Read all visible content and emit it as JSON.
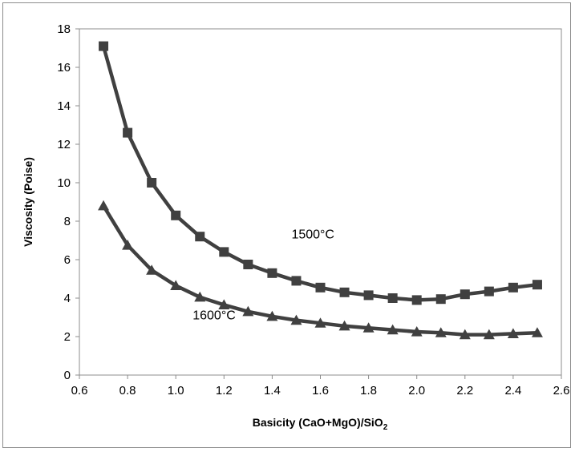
{
  "chart_data": {
    "type": "line",
    "xlabel": "Basicity (CaO+MgO)/SiO",
    "xlabel_subscript": "2",
    "ylabel": "Viscosity (Poise)",
    "xlim": [
      0.6,
      2.6
    ],
    "ylim": [
      0,
      18
    ],
    "xticks": [
      0.6,
      0.8,
      1.0,
      1.2,
      1.4,
      1.6,
      1.8,
      2.0,
      2.2,
      2.4,
      2.6
    ],
    "xtick_labels": [
      "0.6",
      "0.8",
      "1.0",
      "1.2",
      "1.4",
      "1.6",
      "1.8",
      "2.0",
      "2.2",
      "2.4",
      "2.6"
    ],
    "yticks": [
      0,
      2,
      4,
      6,
      8,
      10,
      12,
      14,
      16,
      18
    ],
    "ytick_labels": [
      "0",
      "2",
      "4",
      "6",
      "8",
      "10",
      "12",
      "14",
      "16",
      "18"
    ],
    "grid": false,
    "legend": "none",
    "line_color": "#404040",
    "x": [
      0.7,
      0.8,
      0.9,
      1.0,
      1.1,
      1.2,
      1.3,
      1.4,
      1.5,
      1.6,
      1.7,
      1.8,
      1.9,
      2.0,
      2.1,
      2.2,
      2.3,
      2.4,
      2.5
    ],
    "series": [
      {
        "name": "1500°C",
        "marker": "square",
        "values": [
          17.1,
          12.6,
          10.0,
          8.3,
          7.2,
          6.4,
          5.75,
          5.3,
          4.9,
          4.55,
          4.3,
          4.15,
          4.0,
          3.9,
          3.95,
          4.2,
          4.35,
          4.55,
          4.7
        ],
        "label_at": [
          1.48,
          7.1
        ]
      },
      {
        "name": "1600°C",
        "marker": "triangle",
        "values": [
          8.8,
          6.75,
          5.45,
          4.65,
          4.05,
          3.65,
          3.3,
          3.05,
          2.85,
          2.7,
          2.55,
          2.45,
          2.35,
          2.25,
          2.2,
          2.1,
          2.1,
          2.15,
          2.2
        ],
        "label_at": [
          1.07,
          2.9
        ]
      }
    ]
  }
}
